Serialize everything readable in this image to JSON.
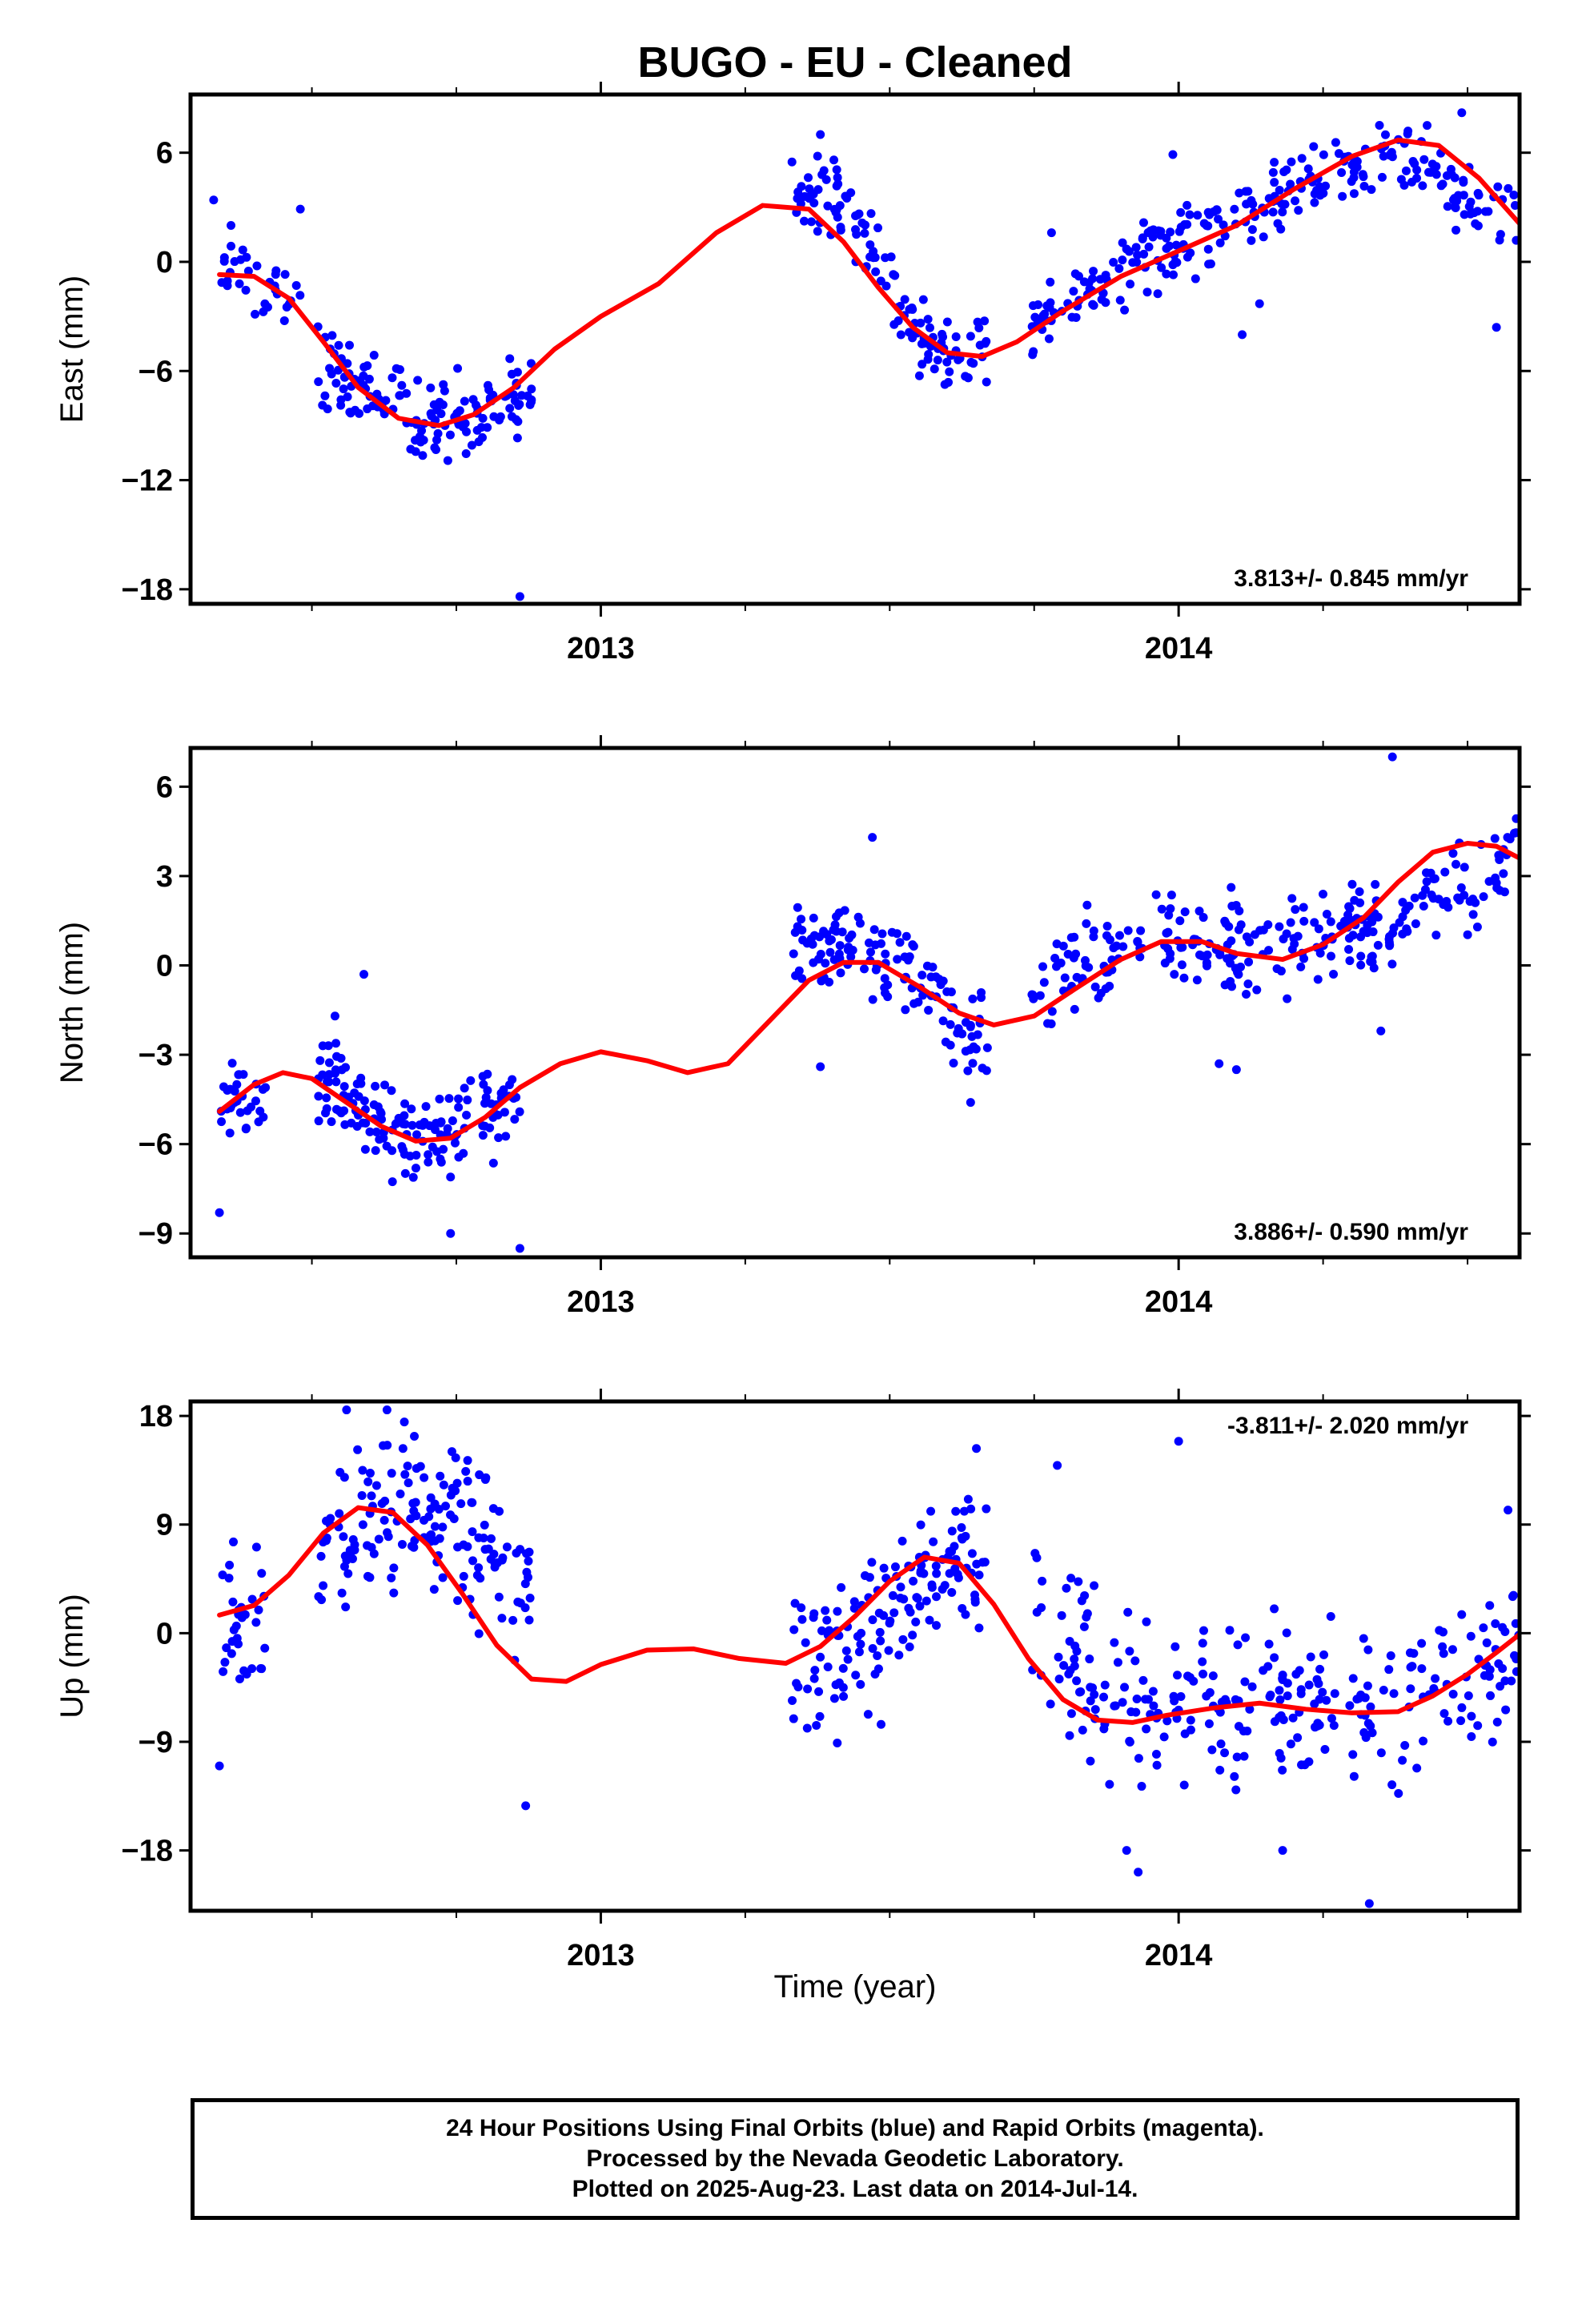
{
  "title": "BUGO  - EU - Cleaned",
  "xlabel": "Time (year)",
  "colors": {
    "data": "#0000ff",
    "fit": "#ff0000",
    "frame": "#000000"
  },
  "caption": [
    "24 Hour Positions Using Final Orbits (blue) and Rapid Orbits (magenta).",
    "Processed by the Nevada Geodetic Laboratory.",
    "Plotted on 2025-Aug-23. Last data on 2014-Jul-14."
  ],
  "chart_data": [
    {
      "type": "scatter",
      "component": "east",
      "ylabel": "East (mm)",
      "rate_text": "3.813+/- 0.845 mm/yr",
      "rate_position": "bottom-right",
      "xlim": [
        2012.29,
        2014.59
      ],
      "ylim": [
        -18.8,
        9.2
      ],
      "yticks": [
        6,
        0,
        -6,
        -12,
        -18
      ],
      "ytick_labels": [
        "6",
        "0",
        "−6",
        "−12",
        "−18"
      ],
      "xticks": [
        2013,
        2014
      ],
      "xtick_labels": [
        "2013",
        "2014"
      ],
      "xminor": [
        2012.5,
        2012.75,
        2013.25,
        2013.5,
        2013.75,
        2014.25,
        2014.5
      ],
      "grid": false,
      "series": [
        {
          "kind": "scatter",
          "x_range": [
            2012.34,
            2012.48
          ],
          "base": [
            -0.8,
            -1.5
          ],
          "noise": 1.4,
          "n": 32
        },
        {
          "kind": "scatter",
          "x_range": [
            2012.51,
            2012.88
          ],
          "base": [
            -5.5,
            -9.0,
            -7.5
          ],
          "noise": 1.3,
          "n": 150
        },
        {
          "kind": "scatter",
          "x_range": [
            2013.33,
            2013.52
          ],
          "base": [
            4.0,
            3.5,
            -2.5
          ],
          "noise": 1.3,
          "n": 70
        },
        {
          "kind": "scatter",
          "x_range": [
            2013.52,
            2013.67
          ],
          "base": [
            -2.5,
            -5.0,
            -4.5
          ],
          "noise": 1.2,
          "n": 55
        },
        {
          "kind": "scatter",
          "x_range": [
            2013.74,
            2014.59
          ],
          "base": [
            -3.5,
            0.5,
            3.5,
            6.0,
            2.0
          ],
          "noise": 1.2,
          "n": 260
        },
        {
          "kind": "outliers",
          "x": [
            2012.33,
            2012.36,
            2012.48,
            2012.86,
            2013.38,
            2013.99,
            2014.11,
            2014.14,
            2014.49,
            2014.43,
            2014.55,
            2013.78
          ],
          "y": [
            3.4,
            2.0,
            2.9,
            -18.4,
            7.0,
            5.9,
            -4.0,
            -2.3,
            8.2,
            7.5,
            -3.6,
            1.6
          ]
        },
        {
          "kind": "fit",
          "x": [
            2012.34,
            2012.4,
            2012.46,
            2012.52,
            2012.58,
            2012.65,
            2012.72,
            2012.78,
            2012.85,
            2012.92,
            2013.0,
            2013.1,
            2013.2,
            2013.28,
            2013.36,
            2013.42,
            2013.48,
            2013.54,
            2013.6,
            2013.66,
            2013.72,
            2013.8,
            2013.9,
            2014.0,
            2014.1,
            2014.2,
            2014.3,
            2014.38,
            2014.45,
            2014.52,
            2014.59
          ],
          "y": [
            -0.7,
            -0.8,
            -2.0,
            -4.4,
            -6.9,
            -8.6,
            -9.0,
            -8.4,
            -6.9,
            -4.8,
            -3.0,
            -1.2,
            1.6,
            3.1,
            2.9,
            1.1,
            -1.4,
            -3.6,
            -5.0,
            -5.2,
            -4.4,
            -2.7,
            -0.8,
            0.6,
            2.0,
            4.0,
            5.8,
            6.7,
            6.4,
            4.6,
            2.1
          ]
        }
      ]
    },
    {
      "type": "scatter",
      "component": "north",
      "ylabel": "North (mm)",
      "rate_text": "3.886+/- 0.590 mm/yr",
      "rate_position": "bottom-right",
      "xlim": [
        2012.29,
        2014.59
      ],
      "ylim": [
        -9.8,
        7.3
      ],
      "yticks": [
        6,
        3,
        0,
        -3,
        -6,
        -9
      ],
      "ytick_labels": [
        "6",
        "3",
        "0",
        "−3",
        "−6",
        "−9"
      ],
      "xticks": [
        2013,
        2014
      ],
      "xtick_labels": [
        "2013",
        "2014"
      ],
      "xminor": [
        2012.5,
        2012.75,
        2013.25,
        2013.5,
        2013.75,
        2014.25,
        2014.5
      ],
      "grid": false,
      "series": [
        {
          "kind": "scatter",
          "x_range": [
            2012.34,
            2012.42
          ],
          "base": [
            -5.0,
            -4.0
          ],
          "noise": 0.9,
          "n": 30
        },
        {
          "kind": "scatter",
          "x_range": [
            2012.51,
            2012.86
          ],
          "base": [
            -3.8,
            -6.2,
            -4.5
          ],
          "noise": 0.9,
          "n": 150
        },
        {
          "kind": "scatter",
          "x_range": [
            2013.33,
            2013.55
          ],
          "base": [
            0.6,
            0.8,
            -0.5
          ],
          "noise": 0.9,
          "n": 85
        },
        {
          "kind": "scatter",
          "x_range": [
            2013.55,
            2013.67
          ],
          "base": [
            -0.8,
            -2.5
          ],
          "noise": 0.9,
          "n": 45
        },
        {
          "kind": "scatter",
          "x_range": [
            2013.74,
            2014.59
          ],
          "base": [
            -0.8,
            0.9,
            0.5,
            1.5,
            3.6
          ],
          "noise": 0.9,
          "n": 270
        },
        {
          "kind": "outliers",
          "x": [
            2012.34,
            2012.54,
            2012.59,
            2012.86,
            2012.74,
            2013.38,
            2013.47,
            2014.37,
            2014.35,
            2014.07,
            2014.1,
            2013.64
          ],
          "y": [
            -8.3,
            -1.7,
            -0.3,
            -9.5,
            -9.0,
            -3.4,
            4.3,
            7.0,
            -2.2,
            -3.3,
            -3.5,
            -4.6
          ]
        },
        {
          "kind": "fit",
          "x": [
            2012.34,
            2012.4,
            2012.45,
            2012.5,
            2012.56,
            2012.62,
            2012.68,
            2012.74,
            2012.8,
            2012.86,
            2012.93,
            2013.0,
            2013.08,
            2013.15,
            2013.22,
            2013.3,
            2013.36,
            2013.42,
            2013.48,
            2013.55,
            2013.62,
            2013.68,
            2013.75,
            2013.82,
            2013.9,
            2013.97,
            2014.04,
            2014.1,
            2014.18,
            2014.25,
            2014.32,
            2014.38,
            2014.44,
            2014.5,
            2014.55,
            2014.59
          ],
          "y": [
            -4.9,
            -4.0,
            -3.6,
            -3.8,
            -4.6,
            -5.4,
            -5.9,
            -5.8,
            -5.1,
            -4.1,
            -3.3,
            -2.9,
            -3.2,
            -3.6,
            -3.3,
            -1.7,
            -0.5,
            0.1,
            0.1,
            -0.7,
            -1.6,
            -2.0,
            -1.7,
            -0.8,
            0.2,
            0.8,
            0.8,
            0.4,
            0.2,
            0.7,
            1.6,
            2.8,
            3.8,
            4.1,
            4.0,
            3.6
          ]
        }
      ]
    },
    {
      "type": "scatter",
      "component": "up",
      "ylabel": "Up (mm)",
      "rate_text": "-3.811+/- 2.020 mm/yr",
      "rate_position": "top-right",
      "xlim": [
        2012.29,
        2014.59
      ],
      "ylim": [
        -23.0,
        19.2
      ],
      "yticks": [
        18,
        9,
        0,
        -9,
        -18
      ],
      "ytick_labels": [
        "18",
        "9",
        "0",
        "−9",
        "−18"
      ],
      "xticks": [
        2013,
        2014
      ],
      "xtick_labels": [
        "2013",
        "2014"
      ],
      "xminor": [
        2012.5,
        2012.75,
        2013.25,
        2013.5,
        2013.75,
        2014.25,
        2014.5
      ],
      "grid": false,
      "series": [
        {
          "kind": "scatter",
          "x_range": [
            2012.34,
            2012.42
          ],
          "base": [
            -1.0,
            1.5
          ],
          "noise": 4.0,
          "n": 32
        },
        {
          "kind": "scatter",
          "x_range": [
            2012.51,
            2012.88
          ],
          "base": [
            7.0,
            10.5,
            4.0
          ],
          "noise": 3.6,
          "n": 160
        },
        {
          "kind": "scatter",
          "x_range": [
            2013.33,
            2013.55
          ],
          "base": [
            -2.0,
            -1.0,
            3.0
          ],
          "noise": 3.8,
          "n": 90
        },
        {
          "kind": "scatter",
          "x_range": [
            2013.55,
            2013.67
          ],
          "base": [
            4.0,
            6.5,
            4.5
          ],
          "noise": 3.6,
          "n": 55
        },
        {
          "kind": "scatter",
          "x_range": [
            2013.74,
            2014.59
          ],
          "base": [
            1.0,
            -6.5,
            -5.5,
            -6.5,
            -1.0
          ],
          "noise": 3.8,
          "n": 270
        },
        {
          "kind": "outliers",
          "x": [
            2012.34,
            2012.56,
            2012.63,
            2012.66,
            2012.87,
            2013.65,
            2013.79,
            2014.0,
            2013.93,
            2014.33,
            2014.57,
            2013.91,
            2014.18
          ],
          "y": [
            -11.0,
            18.5,
            18.5,
            17.5,
            -14.3,
            15.3,
            13.9,
            15.9,
            -19.8,
            -22.4,
            10.2,
            -18.0,
            -18.0
          ]
        },
        {
          "kind": "fit",
          "x": [
            2012.34,
            2012.4,
            2012.46,
            2012.52,
            2012.58,
            2012.64,
            2012.7,
            2012.76,
            2012.82,
            2012.88,
            2012.94,
            2013.0,
            2013.08,
            2013.16,
            2013.24,
            2013.32,
            2013.38,
            2013.44,
            2013.5,
            2013.56,
            2013.62,
            2013.68,
            2013.74,
            2013.8,
            2013.86,
            2013.92,
            2013.98,
            2014.06,
            2014.14,
            2014.22,
            2014.3,
            2014.38,
            2014.44,
            2014.5,
            2014.55,
            2014.59
          ],
          "y": [
            1.5,
            2.3,
            4.8,
            8.3,
            10.4,
            10.0,
            7.3,
            3.3,
            -1.0,
            -3.8,
            -4.0,
            -2.6,
            -1.4,
            -1.3,
            -2.1,
            -2.5,
            -1.1,
            1.4,
            4.3,
            6.3,
            5.8,
            2.4,
            -2.1,
            -5.5,
            -7.2,
            -7.4,
            -6.8,
            -6.2,
            -5.8,
            -6.3,
            -6.6,
            -6.5,
            -5.2,
            -3.4,
            -1.6,
            -0.1
          ]
        }
      ]
    }
  ]
}
